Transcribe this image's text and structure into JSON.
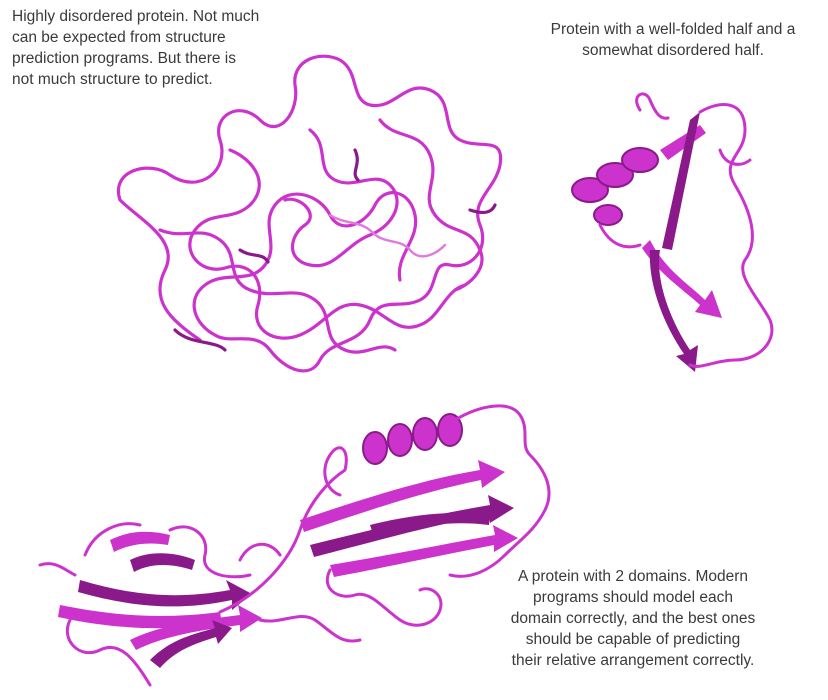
{
  "colors": {
    "ribbon": "#cc33cc",
    "ribbon_dark": "#8a1a8a",
    "ribbon_light": "#e07ae0",
    "text": "#3a3a3a"
  },
  "captions": {
    "disordered": [
      "Highly disordered protein. Not much",
      "can be expected from structure",
      "prediction programs. But there is",
      "not much structure to predict."
    ],
    "half_folded": [
      "Protein with a well-folded half and a",
      "somewhat disordered half."
    ],
    "two_domains": [
      "A protein with 2 domains. Modern",
      "programs should model each",
      "domain correctly, and the best ones",
      "should be capable of predicting",
      "their relative arrangement correctly."
    ]
  }
}
